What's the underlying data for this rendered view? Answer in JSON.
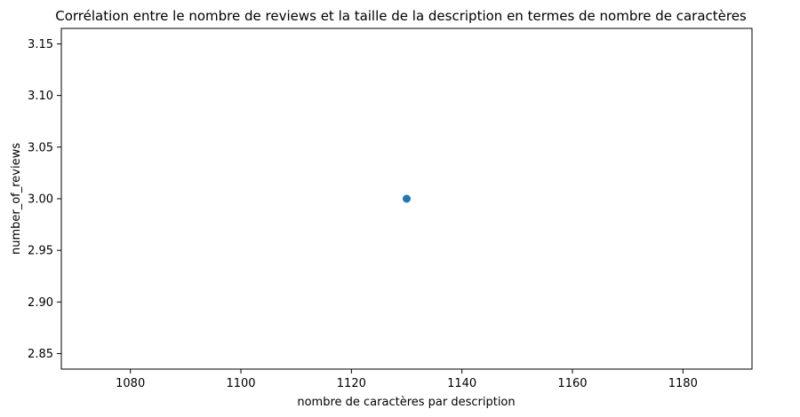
{
  "chart_data": {
    "type": "scatter",
    "title": "Corrélation entre le nombre de reviews et la taille de la description en termes de nombre de caractères",
    "xlabel": "nombre de caractères par description",
    "ylabel": "number_of_reviews",
    "xlim": [
      1067.5,
      1192.5
    ],
    "ylim": [
      2.835,
      3.165
    ],
    "x_ticks": [
      1080,
      1100,
      1120,
      1140,
      1160,
      1180
    ],
    "y_ticks": [
      2.85,
      2.9,
      2.95,
      3.0,
      3.05,
      3.1,
      3.15
    ],
    "x_tick_labels": [
      "1080",
      "1100",
      "1120",
      "1140",
      "1160",
      "1180"
    ],
    "y_tick_labels": [
      "2.85",
      "2.90",
      "2.95",
      "3.00",
      "3.05",
      "3.10",
      "3.15"
    ],
    "grid": false,
    "point_color": "#1f77b4",
    "points": [
      {
        "x": 1130,
        "y": 3.0
      }
    ]
  }
}
